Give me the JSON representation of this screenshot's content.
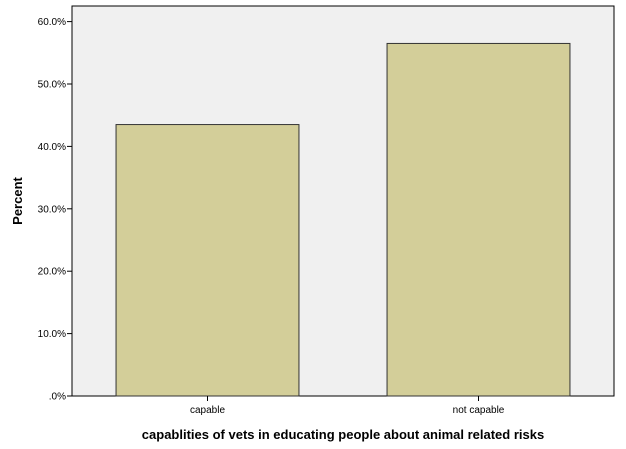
{
  "chart_data": {
    "type": "bar",
    "categories": [
      "capable",
      "not capable"
    ],
    "values": [
      43.5,
      56.5
    ],
    "xlabel": "capablities of vets in educating people about animal related risks",
    "ylabel": "Percent",
    "ylim": [
      0,
      62.5
    ],
    "yticks": [
      ".0%",
      "10.0%",
      "20.0%",
      "30.0%",
      "40.0%",
      "50.0%",
      "60.0%"
    ],
    "ytick_values": [
      0,
      10,
      20,
      30,
      40,
      50,
      60
    ],
    "grid": false,
    "legend": "none",
    "colors": {
      "bar_fill": "#d3ce99",
      "bar_stroke": "#333333",
      "plot_bg": "#f0f0f0"
    }
  }
}
